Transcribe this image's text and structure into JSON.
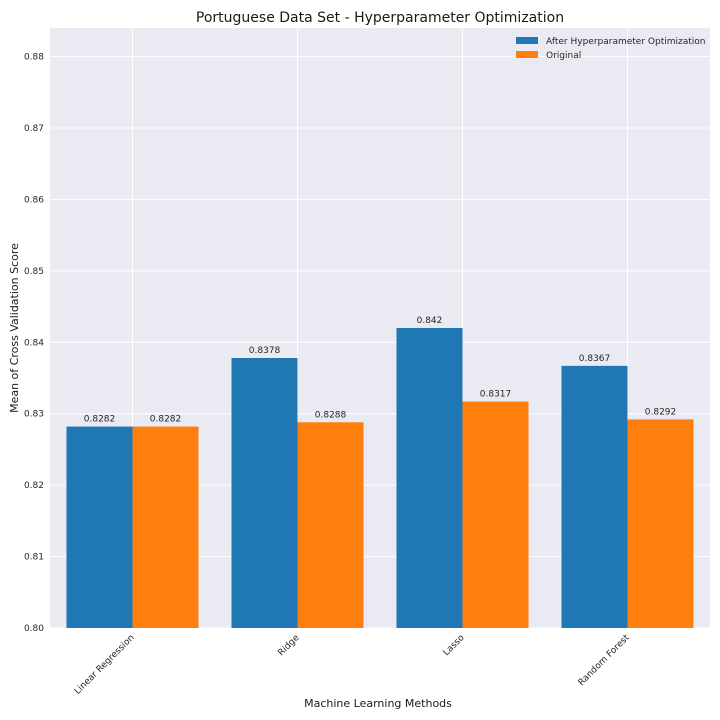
{
  "chart_data": {
    "type": "bar",
    "title": "Portuguese Data Set - Hyperparameter Optimization",
    "xlabel": "Machine Learning Methods",
    "ylabel": "Mean of Cross Validation Score",
    "categories": [
      "Linear Regression",
      "Ridge",
      "Lasso",
      "Random Forest"
    ],
    "series": [
      {
        "name": "After Hyperparameter Optimization",
        "color": "#1f77b4",
        "values": [
          0.8282,
          0.8378,
          0.842,
          0.8367
        ],
        "labels": [
          "0.8282",
          "0.8378",
          "0.842",
          "0.8367"
        ]
      },
      {
        "name": "Original",
        "color": "#ff7f0e",
        "values": [
          0.8282,
          0.8288,
          0.8317,
          0.8292
        ],
        "labels": [
          "0.8282",
          "0.8288",
          "0.8317",
          "0.8292"
        ]
      }
    ],
    "ylim": [
      0.8,
      0.884
    ],
    "yticks": [
      0.8,
      0.81,
      0.82,
      0.83,
      0.84,
      0.85,
      0.86,
      0.87,
      0.88
    ],
    "ytick_labels": [
      "0.80",
      "0.81",
      "0.82",
      "0.83",
      "0.84",
      "0.85",
      "0.86",
      "0.87",
      "0.88"
    ],
    "grid": true,
    "legend_position": "top-right",
    "background_color": "#eaeaf2"
  }
}
